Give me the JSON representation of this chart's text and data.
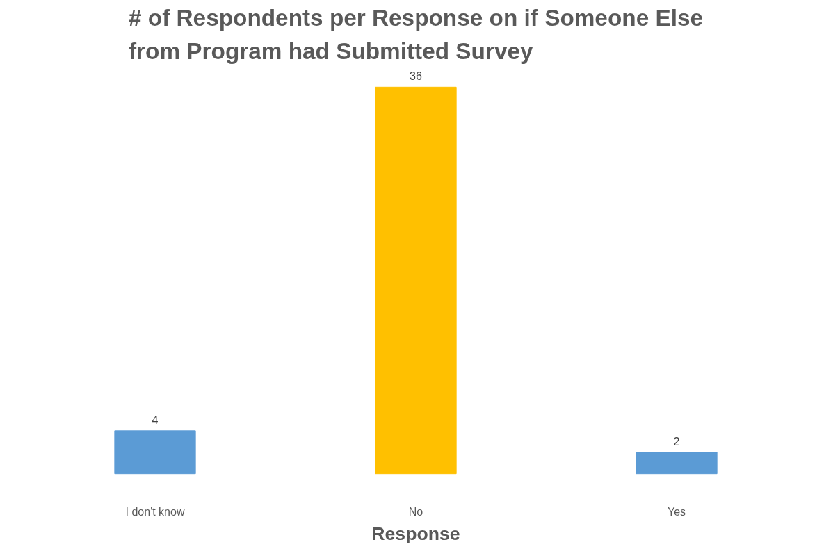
{
  "chart_data": {
    "type": "bar",
    "title": "# of Respondents per Response on if Someone Else from Program had Submitted Survey",
    "xlabel": "Response",
    "categories": [
      "I don't know",
      "No",
      "Yes"
    ],
    "values": [
      4,
      36,
      2
    ],
    "colors": [
      "#5b9bd5",
      "#ffc000",
      "#5b9bd5"
    ],
    "data_labels": true,
    "tick_labels": "x"
  }
}
